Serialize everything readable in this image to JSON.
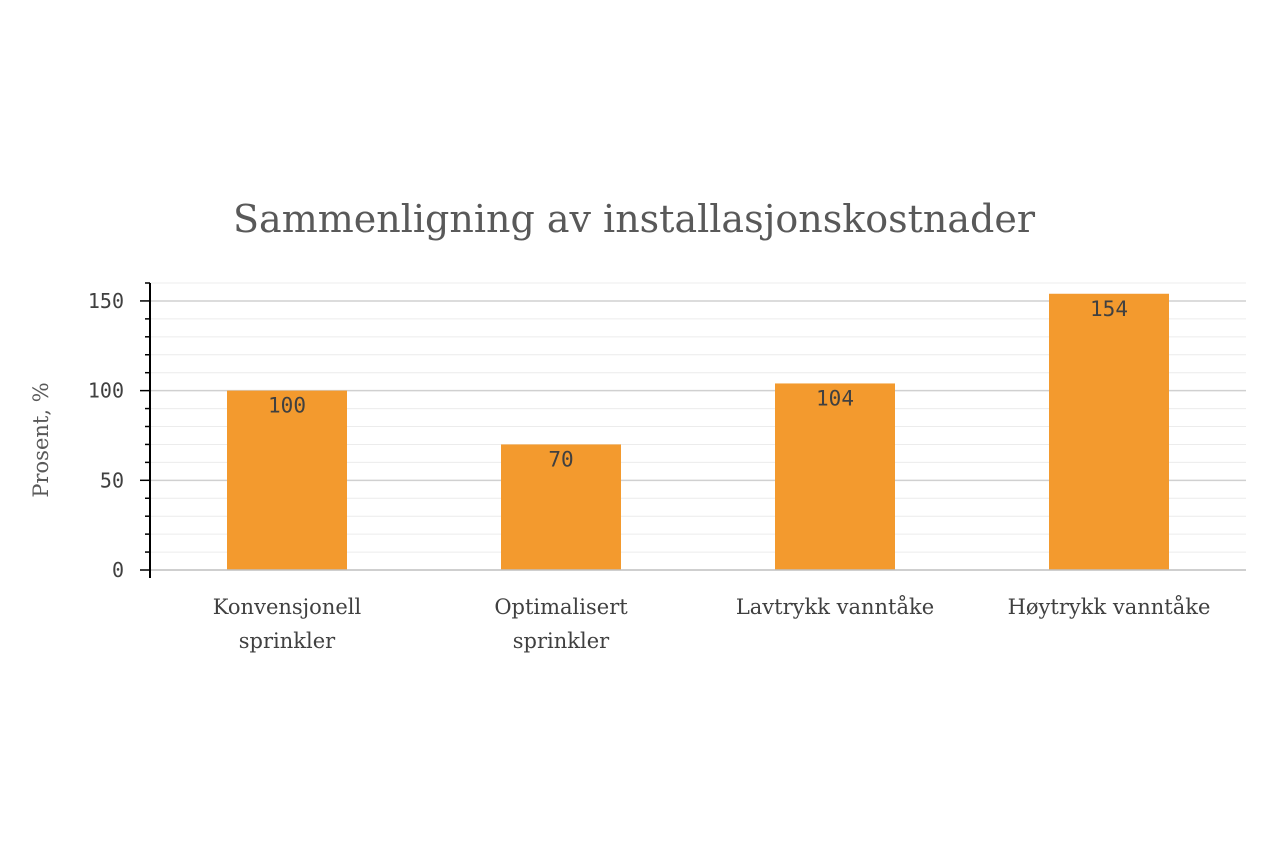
{
  "chart_data": {
    "type": "bar",
    "title": "Sammenligning av installasjonskostnader",
    "ylabel": "Prosent, %",
    "xlabel": "",
    "categories": [
      [
        "Konvensjonell",
        "sprinkler"
      ],
      [
        "Optimalisert",
        "sprinkler"
      ],
      [
        "Lavtrykk vanntåke"
      ],
      [
        "Høytrykk vanntåke"
      ]
    ],
    "values": [
      100,
      70,
      104,
      154
    ],
    "data_labels": [
      "100",
      "70",
      "104",
      "154"
    ],
    "ylim": [
      0,
      160
    ],
    "yticks": [
      0,
      50,
      100,
      150
    ],
    "minor_gridlines": true,
    "legend": "none",
    "bar_color": "#F39A2E"
  }
}
